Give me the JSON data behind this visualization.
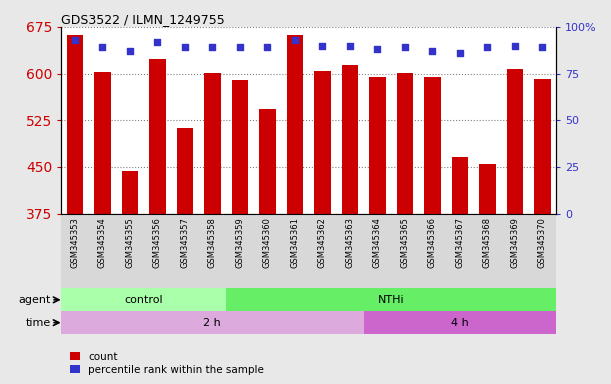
{
  "title": "GDS3522 / ILMN_1249755",
  "samples": [
    "GSM345353",
    "GSM345354",
    "GSM345355",
    "GSM345356",
    "GSM345357",
    "GSM345358",
    "GSM345359",
    "GSM345360",
    "GSM345361",
    "GSM345362",
    "GSM345363",
    "GSM345364",
    "GSM345365",
    "GSM345366",
    "GSM345367",
    "GSM345368",
    "GSM345369",
    "GSM345370"
  ],
  "counts": [
    662,
    602,
    443,
    624,
    513,
    601,
    590,
    543,
    662,
    604,
    614,
    595,
    601,
    595,
    466,
    455,
    608,
    592
  ],
  "percentile_ranks": [
    93,
    89,
    87,
    92,
    89,
    89,
    89,
    89,
    93,
    90,
    90,
    88,
    89,
    87,
    86,
    89,
    90,
    89
  ],
  "ylim_left": [
    375,
    675
  ],
  "ylim_right": [
    0,
    100
  ],
  "yticks_left": [
    375,
    450,
    525,
    600,
    675
  ],
  "yticks_right": [
    0,
    25,
    50,
    75,
    100
  ],
  "bar_color": "#cc0000",
  "dot_color": "#3333cc",
  "agent_groups": [
    {
      "label": "control",
      "start": 0,
      "end": 6,
      "color": "#aaffaa"
    },
    {
      "label": "NTHi",
      "start": 6,
      "end": 18,
      "color": "#66ee66"
    }
  ],
  "time_groups": [
    {
      "label": "2 h",
      "start": 0,
      "end": 11,
      "color": "#ddaadd"
    },
    {
      "label": "4 h",
      "start": 11,
      "end": 18,
      "color": "#cc66cc"
    }
  ],
  "legend_count_label": "count",
  "legend_pct_label": "percentile rank within the sample",
  "background_color": "#e8e8e8",
  "plot_bg_color": "#ffffff",
  "xtick_bg_color": "#d8d8d8"
}
